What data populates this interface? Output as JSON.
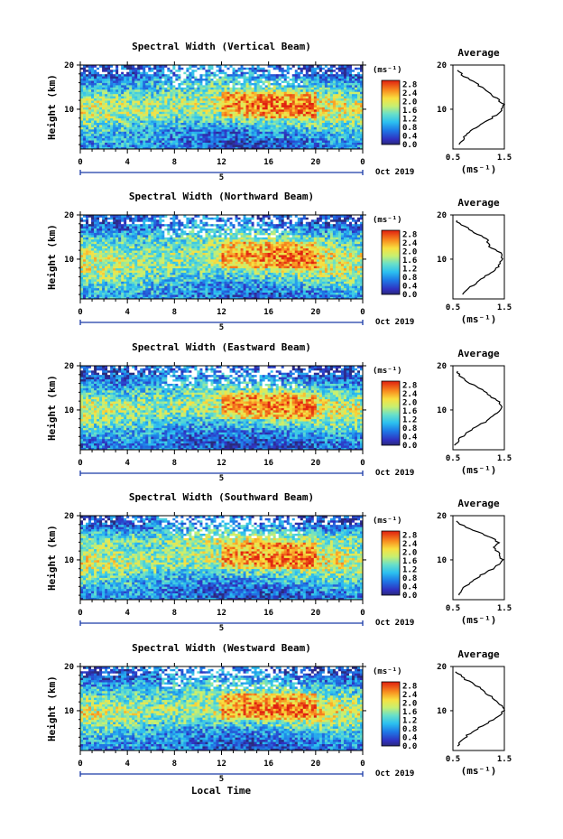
{
  "figure": {
    "height_label": "Height (km)",
    "unit_label": "(ms⁻¹)",
    "avg_title": "Average",
    "date_label": "Oct 2019",
    "day_label": "5",
    "xlabel": "Local Time",
    "colorbar_ticks": [
      "2.8",
      "2.4",
      "2.0",
      "1.6",
      "1.2",
      "0.8",
      "0.4",
      "0.0"
    ],
    "avg_x_ticks": [
      "0.5",
      "1.5"
    ],
    "height_ticks": [
      "20",
      "10"
    ],
    "time_ticks": [
      "0",
      "4",
      "8",
      "12",
      "16",
      "20",
      "0"
    ]
  },
  "chart_data": [
    {
      "type": "heatmap",
      "title": "Spectral Width (Vertical Beam)",
      "xlabel": "Local Time",
      "ylabel": "Height (km)",
      "xlim": [
        0,
        24
      ],
      "ylim": [
        1,
        20
      ],
      "colorbar": {
        "label": "(ms⁻¹)",
        "range": [
          0,
          3.0
        ]
      },
      "average_profile": {
        "title": "Average",
        "xlim": [
          0.5,
          1.5
        ],
        "height": [
          2,
          3,
          4,
          5,
          6,
          7,
          8,
          9,
          10,
          11,
          12,
          13,
          14,
          15,
          16,
          17,
          18,
          19
        ],
        "value": [
          0.62,
          0.68,
          0.75,
          0.82,
          0.95,
          1.1,
          1.25,
          1.38,
          1.45,
          1.48,
          1.4,
          1.28,
          1.15,
          1.05,
          0.95,
          0.78,
          0.66,
          0.58
        ]
      }
    },
    {
      "type": "heatmap",
      "title": "Spectral Width (Northward Beam)",
      "xlabel": "Local Time",
      "ylabel": "Height (km)",
      "xlim": [
        0,
        24
      ],
      "ylim": [
        1,
        20
      ],
      "colorbar": {
        "label": "(ms⁻¹)",
        "range": [
          0,
          3.0
        ]
      },
      "average_profile": {
        "title": "Average",
        "xlim": [
          0.5,
          1.5
        ],
        "height": [
          2,
          3,
          4,
          5,
          6,
          7,
          8,
          9,
          10,
          11,
          12,
          13,
          14,
          15,
          16,
          17,
          18,
          19
        ],
        "value": [
          0.7,
          0.78,
          0.88,
          0.98,
          1.12,
          1.25,
          1.35,
          1.4,
          1.44,
          1.45,
          1.35,
          1.2,
          1.18,
          1.1,
          0.92,
          0.78,
          0.64,
          0.55
        ]
      }
    },
    {
      "type": "heatmap",
      "title": "Spectral Width (Eastward Beam)",
      "xlabel": "Local Time",
      "ylabel": "Height (km)",
      "xlim": [
        0,
        24
      ],
      "ylim": [
        1,
        20
      ],
      "colorbar": {
        "label": "(ms⁻¹)",
        "range": [
          0,
          3.0
        ]
      },
      "average_profile": {
        "title": "Average",
        "xlim": [
          0.5,
          1.5
        ],
        "height": [
          2,
          3,
          4,
          5,
          6,
          7,
          8,
          9,
          10,
          11,
          12,
          13,
          14,
          15,
          16,
          17,
          18,
          19
        ],
        "value": [
          0.55,
          0.6,
          0.68,
          0.78,
          0.92,
          1.08,
          1.22,
          1.32,
          1.42,
          1.45,
          1.38,
          1.25,
          1.15,
          1.02,
          0.85,
          0.72,
          0.62,
          0.55
        ]
      }
    },
    {
      "type": "heatmap",
      "title": "Spectral Width (Southward Beam)",
      "xlabel": "Local Time",
      "ylabel": "Height (km)",
      "xlim": [
        0,
        24
      ],
      "ylim": [
        1,
        20
      ],
      "colorbar": {
        "label": "(ms⁻¹)",
        "range": [
          0,
          3.0
        ]
      },
      "average_profile": {
        "title": "Average",
        "xlim": [
          0.5,
          1.5
        ],
        "height": [
          2,
          3,
          4,
          5,
          6,
          7,
          8,
          9,
          10,
          11,
          12,
          13,
          14,
          15,
          16,
          17,
          18,
          19
        ],
        "value": [
          0.6,
          0.66,
          0.74,
          0.84,
          0.98,
          1.12,
          1.28,
          1.4,
          1.46,
          1.42,
          1.36,
          1.3,
          1.38,
          1.25,
          1.05,
          0.82,
          0.66,
          0.56
        ]
      }
    },
    {
      "type": "heatmap",
      "title": "Spectral Width (Westward Beam)",
      "xlabel": "Local Time",
      "ylabel": "Height (km)",
      "xlim": [
        0,
        24
      ],
      "ylim": [
        1,
        20
      ],
      "colorbar": {
        "label": "(ms⁻¹)",
        "range": [
          0,
          3.0
        ]
      },
      "average_profile": {
        "title": "Average",
        "xlim": [
          0.5,
          1.5
        ],
        "height": [
          2,
          3,
          4,
          5,
          6,
          7,
          8,
          9,
          10,
          11,
          12,
          13,
          14,
          15,
          16,
          17,
          18,
          19
        ],
        "value": [
          0.6,
          0.66,
          0.74,
          0.84,
          0.98,
          1.12,
          1.28,
          1.4,
          1.48,
          1.45,
          1.36,
          1.26,
          1.15,
          1.05,
          0.9,
          0.76,
          0.64,
          0.56
        ]
      }
    }
  ]
}
